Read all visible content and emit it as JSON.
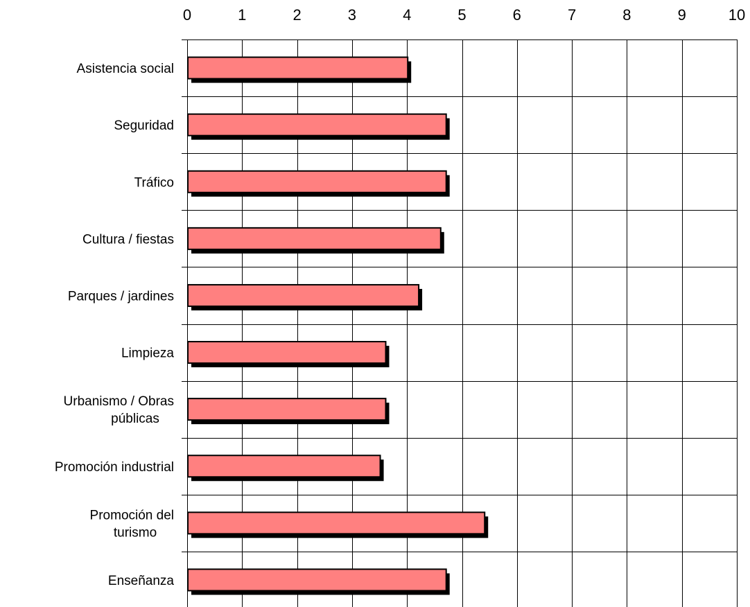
{
  "chart_data": {
    "type": "bar",
    "orientation": "horizontal",
    "categories": [
      "Asistencia social",
      "Seguridad",
      "Tráfico",
      "Cultura / fiestas",
      "Parques / jardines",
      "Limpieza",
      "Urbanismo / Obras públicas",
      "Promoción industrial",
      "Promoción del turismo",
      "Enseñanza"
    ],
    "values": [
      4.0,
      4.7,
      4.7,
      4.6,
      4.2,
      3.6,
      3.6,
      3.5,
      5.4,
      4.7
    ],
    "xlim": [
      0,
      10
    ],
    "xticks": [
      0,
      1,
      2,
      3,
      4,
      5,
      6,
      7,
      8,
      9,
      10
    ],
    "x_axis_position": "top",
    "grid": true,
    "legend": "none",
    "title": "",
    "xlabel": "",
    "ylabel": "",
    "colors": {
      "bar": "#ff8080",
      "bar_outline": "#000000",
      "shadow": "#000000",
      "grid": "#000000"
    }
  }
}
